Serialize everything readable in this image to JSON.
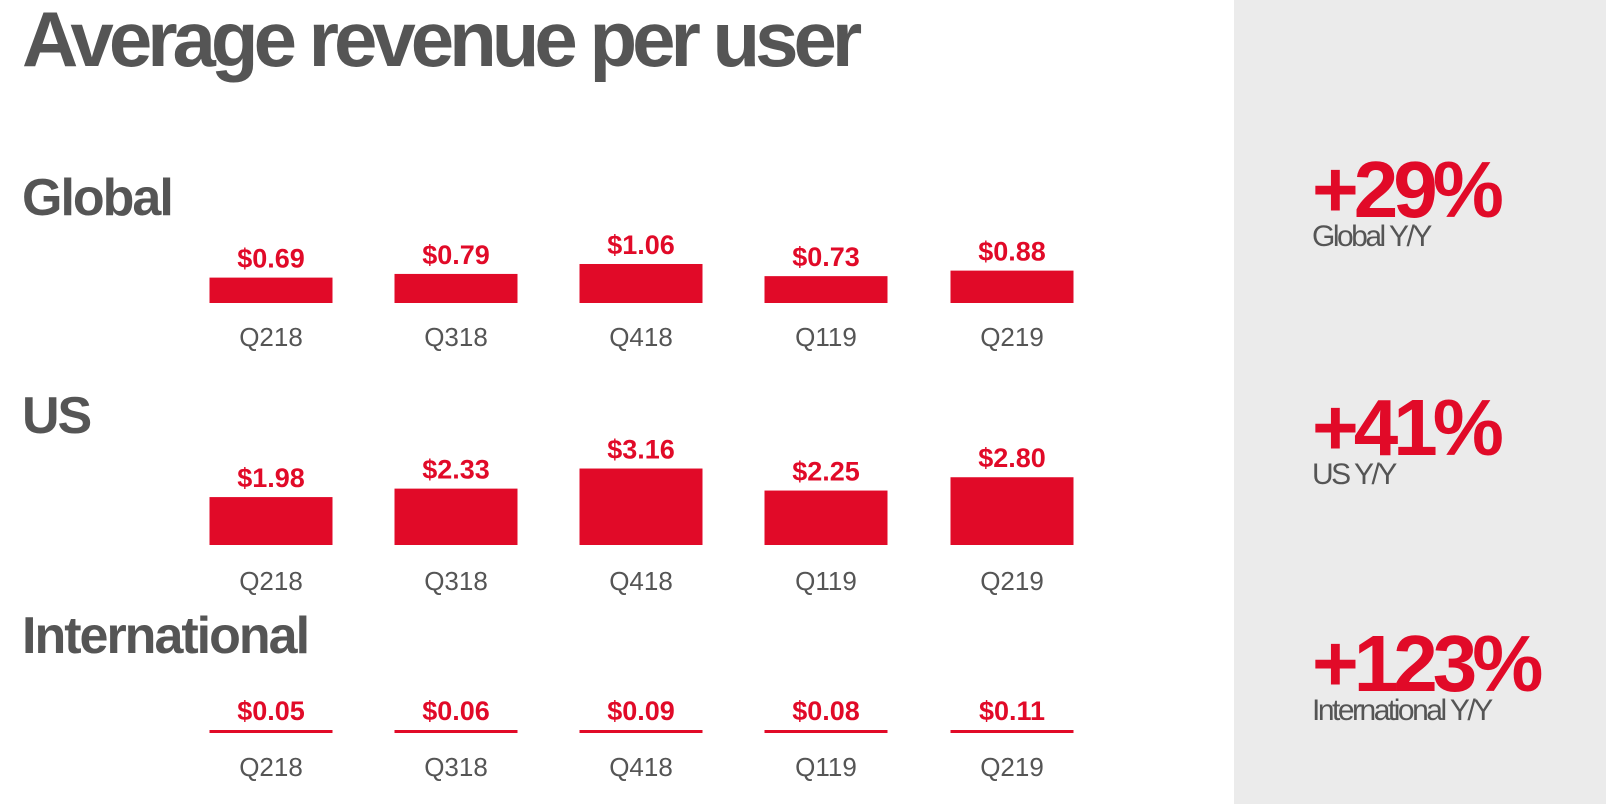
{
  "title": "Average revenue per user",
  "colors": {
    "bar": "#e10a28",
    "text": "#555555",
    "side_panel": "#ebebeb"
  },
  "sections": [
    {
      "title": "Global",
      "stat_value": "+29%",
      "stat_label": "Global Y/Y"
    },
    {
      "title": "US",
      "stat_value": "+41%",
      "stat_label": "US Y/Y"
    },
    {
      "title": "International",
      "stat_value": "+123%",
      "stat_label": "International Y/Y"
    }
  ],
  "chart_data": [
    {
      "type": "bar",
      "title": "Global",
      "categories": [
        "Q218",
        "Q318",
        "Q418",
        "Q119",
        "Q219"
      ],
      "values": [
        0.69,
        0.79,
        1.06,
        0.73,
        0.88
      ],
      "labels": [
        "$0.69",
        "$0.79",
        "$1.06",
        "$0.73",
        "$0.88"
      ]
    },
    {
      "type": "bar",
      "title": "US",
      "categories": [
        "Q218",
        "Q318",
        "Q418",
        "Q119",
        "Q219"
      ],
      "values": [
        1.98,
        2.33,
        3.16,
        2.25,
        2.8
      ],
      "labels": [
        "$1.98",
        "$2.33",
        "$3.16",
        "$2.25",
        "$2.80"
      ]
    },
    {
      "type": "bar",
      "title": "International",
      "categories": [
        "Q218",
        "Q318",
        "Q418",
        "Q119",
        "Q219"
      ],
      "values": [
        0.05,
        0.06,
        0.09,
        0.08,
        0.11
      ],
      "labels": [
        "$0.05",
        "$0.06",
        "$0.09",
        "$0.08",
        "$0.11"
      ]
    }
  ]
}
